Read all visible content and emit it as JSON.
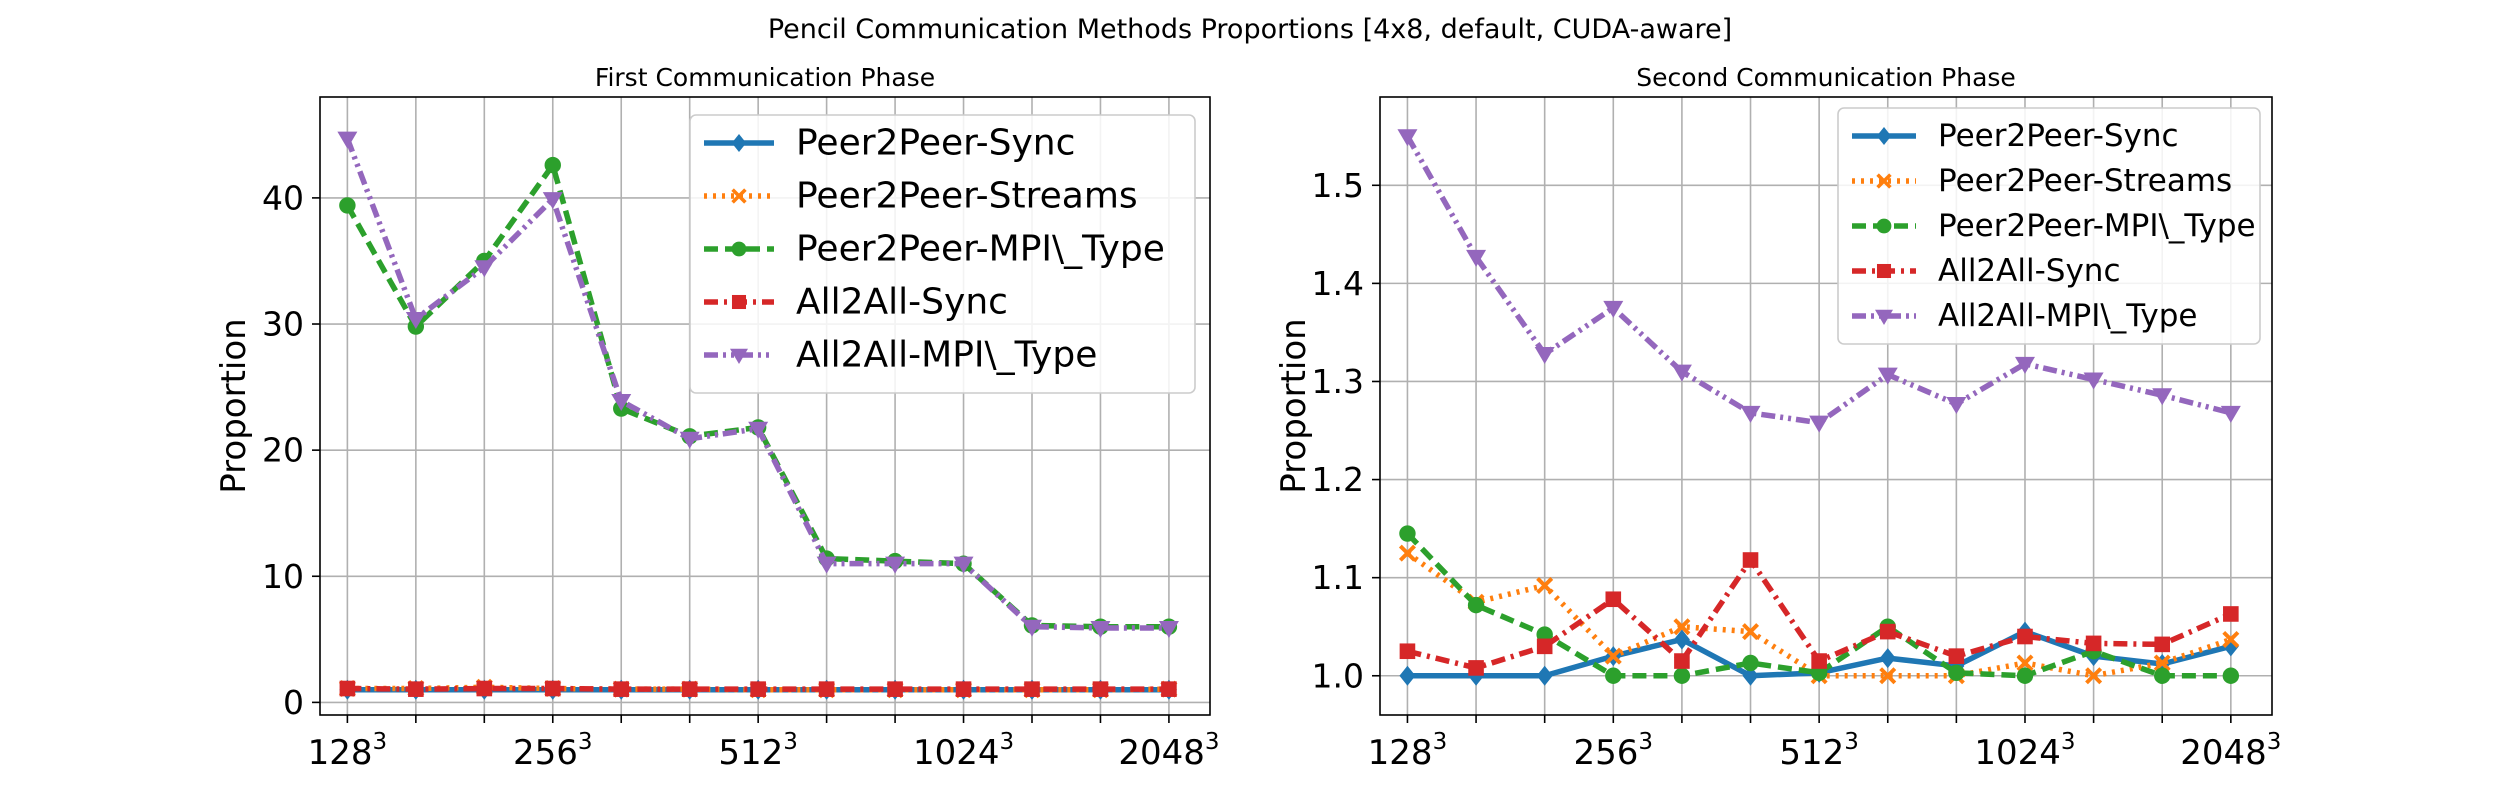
{
  "suptitle": "Pencil Communication Methods Proportions [4x8, default, CUDA-aware]",
  "colors": {
    "Peer2Peer-Sync": "#1f77b4",
    "Peer2Peer-Streams": "#ff7f0e",
    "Peer2Peer-MPI\\_Type": "#2ca02c",
    "All2All-Sync": "#d62728",
    "All2All-MPI\\_Type": "#9467bd"
  },
  "styles": {
    "Peer2Peer-Sync": {
      "dash": "solid",
      "marker": "diamond"
    },
    "Peer2Peer-Streams": {
      "dash": "dotted",
      "marker": "x"
    },
    "Peer2Peer-MPI\\_Type": {
      "dash": "dashed",
      "marker": "circle"
    },
    "All2All-Sync": {
      "dash": "dashdot",
      "marker": "square"
    },
    "All2All-MPI\\_Type": {
      "dash": "dashdotdot",
      "marker": "triangle-down"
    }
  },
  "chart_data": [
    {
      "type": "line",
      "title": "First Communication Phase",
      "xlabel": "",
      "ylabel": "Proportion",
      "x": [
        1,
        2,
        3,
        4,
        5,
        6,
        7,
        8,
        9,
        10,
        11,
        12,
        13
      ],
      "xticks": [
        {
          "x": 1,
          "base": "128",
          "exp": "3"
        },
        {
          "x": 4,
          "base": "256",
          "exp": "3"
        },
        {
          "x": 7,
          "base": "512",
          "exp": "3"
        },
        {
          "x": 10,
          "base": "1024",
          "exp": "3"
        },
        {
          "x": 13,
          "base": "2048",
          "exp": "3"
        }
      ],
      "yticks": [
        "0",
        "10",
        "20",
        "30",
        "40"
      ],
      "ylim": [
        -1,
        48
      ],
      "xlim": [
        0.6,
        13.6
      ],
      "grid": true,
      "legend_position": "upper right",
      "series": [
        {
          "name": "Peer2Peer-Sync",
          "values": [
            1.0,
            1.0,
            1.0,
            1.0,
            1.0,
            1.0,
            1.0,
            1.0,
            1.0,
            1.0,
            1.0,
            1.0,
            1.0
          ]
        },
        {
          "name": "Peer2Peer-Streams",
          "values": [
            1.1,
            1.1,
            1.2,
            1.1,
            1.05,
            1.05,
            1.0,
            1.0,
            1.0,
            1.0,
            1.0,
            1.0,
            1.05
          ]
        },
        {
          "name": "Peer2Peer-MPI\\_Type",
          "values": [
            39.4,
            29.8,
            35.0,
            42.6,
            23.3,
            21.1,
            21.8,
            11.4,
            11.2,
            11.0,
            6.1,
            6.0,
            6.0
          ]
        },
        {
          "name": "All2All-Sync",
          "values": [
            1.1,
            1.05,
            1.1,
            1.1,
            1.05,
            1.05,
            1.05,
            1.05,
            1.05,
            1.05,
            1.05,
            1.05,
            1.05
          ]
        },
        {
          "name": "All2All-MPI\\_Type",
          "values": [
            44.7,
            30.4,
            34.5,
            39.9,
            23.9,
            20.9,
            21.7,
            11.0,
            11.0,
            11.0,
            6.0,
            5.9,
            5.9
          ]
        }
      ]
    },
    {
      "type": "line",
      "title": "Second Communication Phase",
      "xlabel": "",
      "ylabel": "Proportion",
      "x": [
        1,
        2,
        3,
        4,
        5,
        6,
        7,
        8,
        9,
        10,
        11,
        12,
        13
      ],
      "xticks": [
        {
          "x": 1,
          "base": "128",
          "exp": "3"
        },
        {
          "x": 4,
          "base": "256",
          "exp": "3"
        },
        {
          "x": 7,
          "base": "512",
          "exp": "3"
        },
        {
          "x": 10,
          "base": "1024",
          "exp": "3"
        },
        {
          "x": 13,
          "base": "2048",
          "exp": "3"
        }
      ],
      "yticks": [
        "1.0",
        "1.1",
        "1.2",
        "1.3",
        "1.4",
        "1.5"
      ],
      "ylim": [
        0.96,
        1.59
      ],
      "xlim": [
        0.6,
        13.6
      ],
      "grid": true,
      "legend_position": "upper right",
      "series": [
        {
          "name": "Peer2Peer-Sync",
          "values": [
            1.0,
            1.0,
            1.0,
            1.02,
            1.037,
            1.0,
            1.003,
            1.018,
            1.01,
            1.045,
            1.02,
            1.012,
            1.03
          ]
        },
        {
          "name": "Peer2Peer-Streams",
          "values": [
            1.125,
            1.075,
            1.092,
            1.02,
            1.05,
            1.045,
            1.0,
            1.0,
            1.0,
            1.013,
            1.0,
            1.013,
            1.037
          ]
        },
        {
          "name": "Peer2Peer-MPI\\_Type",
          "values": [
            1.145,
            1.072,
            1.042,
            1.0,
            1.0,
            1.013,
            1.003,
            1.05,
            1.003,
            1.0,
            1.025,
            1.0,
            1.0
          ]
        },
        {
          "name": "All2All-Sync",
          "values": [
            1.025,
            1.008,
            1.03,
            1.078,
            1.015,
            1.118,
            1.015,
            1.045,
            1.02,
            1.04,
            1.033,
            1.032,
            1.063
          ]
        },
        {
          "name": "All2All-MPI\\_Type",
          "values": [
            1.55,
            1.427,
            1.328,
            1.375,
            1.31,
            1.268,
            1.258,
            1.307,
            1.277,
            1.318,
            1.302,
            1.286,
            1.268
          ]
        }
      ]
    }
  ]
}
